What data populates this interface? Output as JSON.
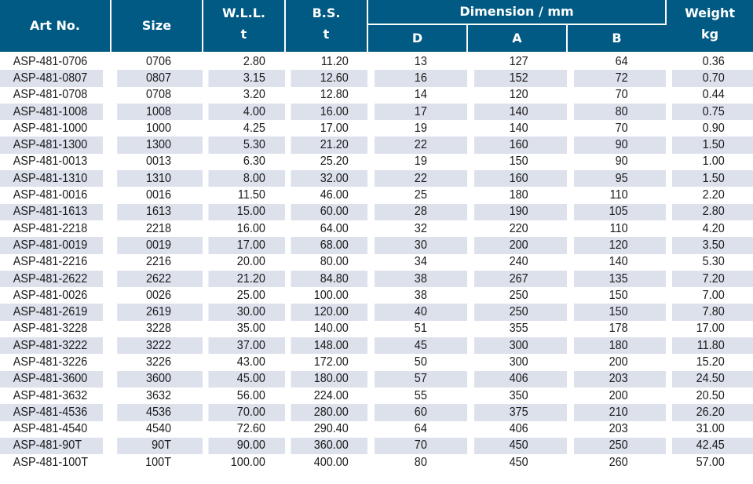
{
  "header": {
    "art_no": "Art No.",
    "size": "Size",
    "wll": "W.L.L.",
    "wll_unit": "t",
    "bs": "B.S.",
    "bs_unit": "t",
    "dimension": "Dimension / mm",
    "d": "D",
    "a": "A",
    "b": "B",
    "weight": "Weight",
    "weight_unit": "kg"
  },
  "rows": [
    [
      "ASP-481-0706",
      "0706",
      "2.80",
      "11.20",
      "13",
      "127",
      "64",
      "0.36"
    ],
    [
      "ASP-481-0807",
      "0807",
      "3.15",
      "12.60",
      "16",
      "152",
      "72",
      "0.70"
    ],
    [
      "ASP-481-0708",
      "0708",
      "3.20",
      "12.80",
      "14",
      "120",
      "70",
      "0.44"
    ],
    [
      "ASP-481-1008",
      "1008",
      "4.00",
      "16.00",
      "17",
      "140",
      "80",
      "0.75"
    ],
    [
      "ASP-481-1000",
      "1000",
      "4.25",
      "17.00",
      "19",
      "140",
      "70",
      "0.90"
    ],
    [
      "ASP-481-1300",
      "1300",
      "5.30",
      "21.20",
      "22",
      "160",
      "90",
      "1.50"
    ],
    [
      "ASP-481-0013",
      "0013",
      "6.30",
      "25.20",
      "19",
      "150",
      "90",
      "1.00"
    ],
    [
      "ASP-481-1310",
      "1310",
      "8.00",
      "32.00",
      "22",
      "160",
      "95",
      "1.50"
    ],
    [
      "ASP-481-0016",
      "0016",
      "11.50",
      "46.00",
      "25",
      "180",
      "110",
      "2.20"
    ],
    [
      "ASP-481-1613",
      "1613",
      "15.00",
      "60.00",
      "28",
      "190",
      "105",
      "2.80"
    ],
    [
      "ASP-481-2218",
      "2218",
      "16.00",
      "64.00",
      "32",
      "220",
      "110",
      "4.20"
    ],
    [
      "ASP-481-0019",
      "0019",
      "17.00",
      "68.00",
      "30",
      "200",
      "120",
      "3.50"
    ],
    [
      "ASP-481-2216",
      "2216",
      "20.00",
      "80.00",
      "34",
      "240",
      "140",
      "5.30"
    ],
    [
      "ASP-481-2622",
      "2622",
      "21.20",
      "84.80",
      "38",
      "267",
      "135",
      "7.20"
    ],
    [
      "ASP-481-0026",
      "0026",
      "25.00",
      "100.00",
      "38",
      "250",
      "150",
      "7.00"
    ],
    [
      "ASP-481-2619",
      "2619",
      "30.00",
      "120.00",
      "40",
      "250",
      "150",
      "7.80"
    ],
    [
      "ASP-481-3228",
      "3228",
      "35.00",
      "140.00",
      "51",
      "355",
      "178",
      "17.00"
    ],
    [
      "ASP-481-3222",
      "3222",
      "37.00",
      "148.00",
      "45",
      "300",
      "180",
      "11.80"
    ],
    [
      "ASP-481-3226",
      "3226",
      "43.00",
      "172.00",
      "50",
      "300",
      "200",
      "15.20"
    ],
    [
      "ASP-481-3600",
      "3600",
      "45.00",
      "180.00",
      "57",
      "406",
      "203",
      "24.50"
    ],
    [
      "ASP-481-3632",
      "3632",
      "56.00",
      "224.00",
      "55",
      "350",
      "200",
      "20.50"
    ],
    [
      "ASP-481-4536",
      "4536",
      "70.00",
      "280.00",
      "60",
      "375",
      "210",
      "26.20"
    ],
    [
      "ASP-481-4540",
      "4540",
      "72.60",
      "290.40",
      "64",
      "406",
      "203",
      "31.00"
    ],
    [
      "ASP-481-90T",
      "90T",
      "90.00",
      "360.00",
      "70",
      "450",
      "250",
      "42.45"
    ],
    [
      "ASP-481-100T",
      "100T",
      "100.00",
      "400.00",
      "80",
      "450",
      "260",
      "57.00"
    ]
  ]
}
